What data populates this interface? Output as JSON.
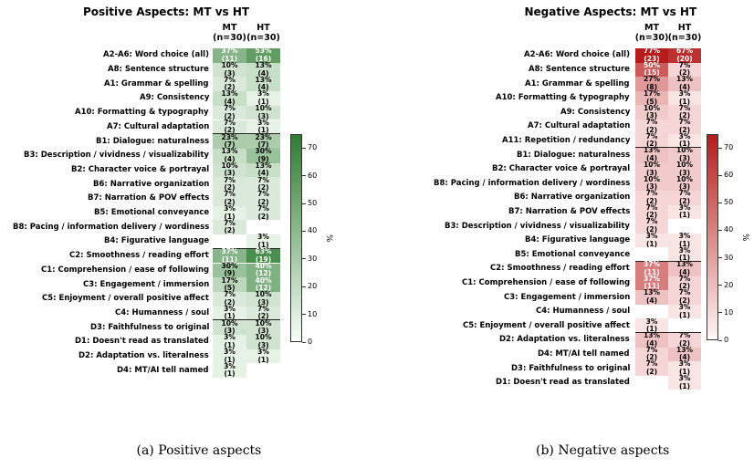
{
  "chart_data": [
    {
      "type": "heatmap",
      "title": "Positive Aspects: MT vs HT",
      "caption": "(a) Positive aspects",
      "columns": [
        "MT\n(n=30)",
        "HT\n(n=30)"
      ],
      "colorbar": {
        "label": "%",
        "ticks": [
          0,
          10,
          20,
          30,
          40,
          50,
          60,
          70
        ],
        "range": [
          0,
          75
        ],
        "color": "#2e7d32"
      },
      "groups": [
        {
          "rows": [
            {
              "label": "A2-A6: Word choice (all)",
              "mt": "37%\n(11)",
              "ht": "53%\n(16)",
              "mt_pct": 37,
              "ht_pct": 53
            },
            {
              "label": "A8: Sentence structure",
              "mt": "10%\n(3)",
              "ht": "13%\n(4)",
              "mt_pct": 10,
              "ht_pct": 13
            },
            {
              "label": "A1: Grammar & spelling",
              "mt": "7%\n(2)",
              "ht": "13%\n(4)",
              "mt_pct": 7,
              "ht_pct": 13
            },
            {
              "label": "A9: Consistency",
              "mt": "13%\n(4)",
              "ht": "3%\n(1)",
              "mt_pct": 13,
              "ht_pct": 3
            },
            {
              "label": "A10: Formatting & typography",
              "mt": "7%\n(2)",
              "ht": "10%\n(3)",
              "mt_pct": 7,
              "ht_pct": 10
            },
            {
              "label": "A7: Cultural adaptation",
              "mt": "7%\n(2)",
              "ht": "3%\n(1)",
              "mt_pct": 7,
              "ht_pct": 3
            }
          ]
        },
        {
          "rows": [
            {
              "label": "B1: Dialogue: naturalness",
              "mt": "23%\n(7)",
              "ht": "23%\n(7)",
              "mt_pct": 23,
              "ht_pct": 23
            },
            {
              "label": "B3: Description / vividness / visualizability",
              "mt": "13%\n(4)",
              "ht": "30%\n(9)",
              "mt_pct": 13,
              "ht_pct": 30
            },
            {
              "label": "B2: Character voice & portrayal",
              "mt": "10%\n(3)",
              "ht": "13%\n(4)",
              "mt_pct": 10,
              "ht_pct": 13
            },
            {
              "label": "B6: Narrative organization",
              "mt": "7%\n(2)",
              "ht": "7%\n(2)",
              "mt_pct": 7,
              "ht_pct": 7
            },
            {
              "label": "B7: Narration & POV effects",
              "mt": "7%\n(2)",
              "ht": "7%\n(2)",
              "mt_pct": 7,
              "ht_pct": 7
            },
            {
              "label": "B5: Emotional conveyance",
              "mt": "3%\n(1)",
              "ht": "7%\n(2)",
              "mt_pct": 3,
              "ht_pct": 7
            },
            {
              "label": "B8: Pacing / information delivery / wordiness",
              "mt": "7%\n(2)",
              "ht": "",
              "mt_pct": 7,
              "ht_pct": 0
            },
            {
              "label": "B4: Figurative language",
              "mt": "",
              "ht": "3%\n(1)",
              "mt_pct": 0,
              "ht_pct": 3
            }
          ]
        },
        {
          "rows": [
            {
              "label": "C2: Smoothness / reading effort",
              "mt": "37%\n(11)",
              "ht": "63%\n(19)",
              "mt_pct": 37,
              "ht_pct": 63
            },
            {
              "label": "C1: Comprehension / ease of following",
              "mt": "30%\n(9)",
              "ht": "40%\n(12)",
              "mt_pct": 30,
              "ht_pct": 40
            },
            {
              "label": "C3: Engagement / immersion",
              "mt": "17%\n(5)",
              "ht": "40%\n(12)",
              "mt_pct": 17,
              "ht_pct": 40
            },
            {
              "label": "C5: Enjoyment / overall positive affect",
              "mt": "7%\n(2)",
              "ht": "10%\n(3)",
              "mt_pct": 7,
              "ht_pct": 10
            },
            {
              "label": "C4: Humanness / soul",
              "mt": "3%\n(1)",
              "ht": "7%\n(2)",
              "mt_pct": 3,
              "ht_pct": 7
            }
          ]
        },
        {
          "rows": [
            {
              "label": "D3: Faithfulness to original",
              "mt": "10%\n(3)",
              "ht": "10%\n(3)",
              "mt_pct": 10,
              "ht_pct": 10
            },
            {
              "label": "D1: Doesn't read as translated",
              "mt": "3%\n(1)",
              "ht": "10%\n(3)",
              "mt_pct": 3,
              "ht_pct": 10
            },
            {
              "label": "D2: Adaptation vs. literalness",
              "mt": "3%\n(1)",
              "ht": "3%\n(1)",
              "mt_pct": 3,
              "ht_pct": 3
            },
            {
              "label": "D4: MT/AI tell named",
              "mt": "3%\n(1)",
              "ht": "",
              "mt_pct": 3,
              "ht_pct": 0
            }
          ]
        }
      ]
    },
    {
      "type": "heatmap",
      "title": "Negative Aspects: MT vs HT",
      "caption": "(b) Negative aspects",
      "columns": [
        "MT\n(n=30)",
        "HT\n(n=30)"
      ],
      "colorbar": {
        "label": "%",
        "ticks": [
          0,
          10,
          20,
          30,
          40,
          50,
          60,
          70
        ],
        "range": [
          0,
          75
        ],
        "color": "#b71c1c"
      },
      "groups": [
        {
          "rows": [
            {
              "label": "A2-A6: Word choice (all)",
              "mt": "77%\n(23)",
              "ht": "67%\n(20)",
              "mt_pct": 77,
              "ht_pct": 67
            },
            {
              "label": "A8: Sentence structure",
              "mt": "50%\n(15)",
              "ht": "7%\n(2)",
              "mt_pct": 50,
              "ht_pct": 7
            },
            {
              "label": "A1: Grammar & spelling",
              "mt": "27%\n(8)",
              "ht": "13%\n(4)",
              "mt_pct": 27,
              "ht_pct": 13
            },
            {
              "label": "A10: Formatting & typography",
              "mt": "17%\n(5)",
              "ht": "3%\n(1)",
              "mt_pct": 17,
              "ht_pct": 3
            },
            {
              "label": "A9: Consistency",
              "mt": "10%\n(3)",
              "ht": "7%\n(2)",
              "mt_pct": 10,
              "ht_pct": 7
            },
            {
              "label": "A7: Cultural adaptation",
              "mt": "7%\n(2)",
              "ht": "7%\n(2)",
              "mt_pct": 7,
              "ht_pct": 7
            },
            {
              "label": "A11: Repetition / redundancy",
              "mt": "7%\n(2)",
              "ht": "3%\n(1)",
              "mt_pct": 7,
              "ht_pct": 3
            }
          ]
        },
        {
          "rows": [
            {
              "label": "B1: Dialogue: naturalness",
              "mt": "13%\n(4)",
              "ht": "10%\n(3)",
              "mt_pct": 13,
              "ht_pct": 10
            },
            {
              "label": "B2: Character voice & portrayal",
              "mt": "10%\n(3)",
              "ht": "10%\n(3)",
              "mt_pct": 10,
              "ht_pct": 10
            },
            {
              "label": "B8: Pacing / information delivery / wordiness",
              "mt": "10%\n(3)",
              "ht": "10%\n(3)",
              "mt_pct": 10,
              "ht_pct": 10
            },
            {
              "label": "B6: Narrative organization",
              "mt": "7%\n(2)",
              "ht": "7%\n(2)",
              "mt_pct": 7,
              "ht_pct": 7
            },
            {
              "label": "B7: Narration & POV effects",
              "mt": "7%\n(2)",
              "ht": "3%\n(1)",
              "mt_pct": 7,
              "ht_pct": 3
            },
            {
              "label": "B3: Description / vividness / visualizability",
              "mt": "7%\n(2)",
              "ht": "",
              "mt_pct": 7,
              "ht_pct": 0
            },
            {
              "label": "B4: Figurative language",
              "mt": "3%\n(1)",
              "ht": "3%\n(1)",
              "mt_pct": 3,
              "ht_pct": 3
            },
            {
              "label": "B5: Emotional conveyance",
              "mt": "",
              "ht": "3%\n(1)",
              "mt_pct": 0,
              "ht_pct": 3
            }
          ]
        },
        {
          "rows": [
            {
              "label": "C2: Smoothness / reading effort",
              "mt": "37%\n(11)",
              "ht": "13%\n(4)",
              "mt_pct": 37,
              "ht_pct": 13
            },
            {
              "label": "C1: Comprehension / ease of following",
              "mt": "37%\n(11)",
              "ht": "7%\n(2)",
              "mt_pct": 37,
              "ht_pct": 7
            },
            {
              "label": "C3: Engagement / immersion",
              "mt": "13%\n(4)",
              "ht": "7%\n(2)",
              "mt_pct": 13,
              "ht_pct": 7
            },
            {
              "label": "C4: Humanness / soul",
              "mt": "",
              "ht": "3%\n(1)",
              "mt_pct": 0,
              "ht_pct": 3
            },
            {
              "label": "C5: Enjoyment / overall positive affect",
              "mt": "3%\n(1)",
              "ht": "",
              "mt_pct": 3,
              "ht_pct": 0
            }
          ]
        },
        {
          "rows": [
            {
              "label": "D2: Adaptation vs. literalness",
              "mt": "13%\n(4)",
              "ht": "7%\n(2)",
              "mt_pct": 13,
              "ht_pct": 7
            },
            {
              "label": "D4: MT/AI tell named",
              "mt": "7%\n(2)",
              "ht": "13%\n(4)",
              "mt_pct": 7,
              "ht_pct": 13
            },
            {
              "label": "D3: Faithfulness to original",
              "mt": "7%\n(2)",
              "ht": "3%\n(1)",
              "mt_pct": 7,
              "ht_pct": 3
            },
            {
              "label": "D1: Doesn't read as translated",
              "mt": "",
              "ht": "3%\n(1)",
              "mt_pct": 0,
              "ht_pct": 3
            }
          ]
        }
      ]
    }
  ]
}
